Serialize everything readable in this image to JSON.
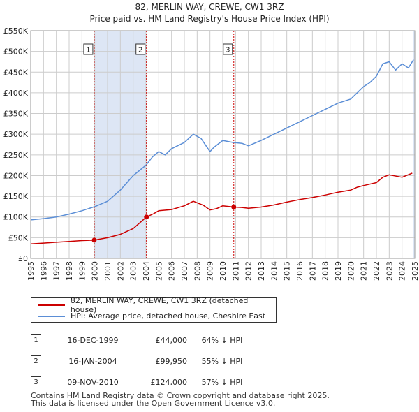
{
  "chart_data": {
    "type": "line",
    "title": "82, MERLIN WAY, CREWE, CW1 3RZ",
    "subtitle": "Price paid vs. HM Land Registry's House Price Index (HPI)",
    "xlabel": "",
    "ylabel": "",
    "xlim": [
      1995,
      2025
    ],
    "ylim": [
      0,
      550000
    ],
    "ytick_values": [
      0,
      50000,
      100000,
      150000,
      200000,
      250000,
      300000,
      350000,
      400000,
      450000,
      500000,
      550000
    ],
    "ytick_labels": [
      "£0",
      "£50K",
      "£100K",
      "£150K",
      "£200K",
      "£250K",
      "£300K",
      "£350K",
      "£400K",
      "£450K",
      "£500K",
      "£550K"
    ],
    "xtick_labels": [
      "1995",
      "1996",
      "1997",
      "1998",
      "1999",
      "2000",
      "2001",
      "2002",
      "2003",
      "2004",
      "2005",
      "2006",
      "2007",
      "2008",
      "2009",
      "2010",
      "2011",
      "2012",
      "2013",
      "2014",
      "2015",
      "2016",
      "2017",
      "2018",
      "2019",
      "2020",
      "2021",
      "2022",
      "2023",
      "2024",
      "2025"
    ],
    "grid": true,
    "legend_position": "below",
    "series": [
      {
        "name": "82, MERLIN WAY, CREWE, CW1 3RZ (detached house)",
        "color": "#cc0000",
        "x": [
          1995.0,
          1996.0,
          1997.0,
          1998.0,
          1999.0,
          1999.96,
          2001.0,
          2002.0,
          2003.0,
          2004.04,
          2004.6,
          2005.0,
          2006.0,
          2007.0,
          2007.7,
          2008.5,
          2009.0,
          2009.5,
          2010.0,
          2010.86,
          2011.5,
          2012.0,
          2013.0,
          2014.0,
          2015.0,
          2016.0,
          2017.0,
          2018.0,
          2019.0,
          2020.0,
          2020.5,
          2021.0,
          2022.0,
          2022.5,
          2023.0,
          2024.0,
          2024.8
        ],
        "y": [
          35000,
          37000,
          39000,
          41000,
          43000,
          44000,
          50000,
          58000,
          72000,
          99950,
          108000,
          115000,
          118000,
          127000,
          138000,
          128000,
          117000,
          120000,
          127000,
          124000,
          123000,
          121000,
          124000,
          129000,
          136000,
          142000,
          147000,
          153000,
          160000,
          165000,
          172000,
          176000,
          183000,
          196000,
          202000,
          196000,
          206000
        ]
      },
      {
        "name": "HPI: Average price, detached house, Cheshire East",
        "color": "#5b8ed6",
        "x": [
          1995.0,
          1996.0,
          1997.0,
          1998.0,
          1999.0,
          2000.0,
          2001.0,
          2002.0,
          2003.0,
          2004.0,
          2004.5,
          2005.0,
          2005.5,
          2006.0,
          2007.0,
          2007.7,
          2008.3,
          2009.0,
          2009.3,
          2010.0,
          2010.8,
          2011.5,
          2012.0,
          2013.0,
          2014.0,
          2015.0,
          2016.0,
          2017.0,
          2018.0,
          2019.0,
          2020.0,
          2020.5,
          2021.0,
          2021.5,
          2022.0,
          2022.5,
          2023.0,
          2023.5,
          2024.0,
          2024.5,
          2024.9
        ],
        "y": [
          93000,
          96000,
          100000,
          107000,
          115000,
          125000,
          138000,
          165000,
          200000,
          225000,
          245000,
          258000,
          250000,
          265000,
          280000,
          300000,
          290000,
          258000,
          268000,
          285000,
          280000,
          278000,
          272000,
          285000,
          300000,
          315000,
          330000,
          345000,
          360000,
          375000,
          385000,
          400000,
          415000,
          425000,
          440000,
          470000,
          475000,
          455000,
          470000,
          460000,
          480000
        ]
      }
    ],
    "sales": [
      {
        "num": "1",
        "date": "16-DEC-1999",
        "price": "£44,000",
        "hpi": "64% ↓ HPI",
        "x": 1999.96,
        "y": 44000
      },
      {
        "num": "2",
        "date": "16-JAN-2004",
        "price": "£99,950",
        "hpi": "55% ↓ HPI",
        "x": 2004.04,
        "y": 99950
      },
      {
        "num": "3",
        "date": "09-NOV-2010",
        "price": "£124,000",
        "hpi": "57% ↓ HPI",
        "x": 2010.86,
        "y": 124000
      }
    ],
    "footer_lines": [
      "Contains HM Land Registry data © Crown copyright and database right 2025.",
      "This data is licensed under the Open Government Licence v3.0."
    ]
  }
}
